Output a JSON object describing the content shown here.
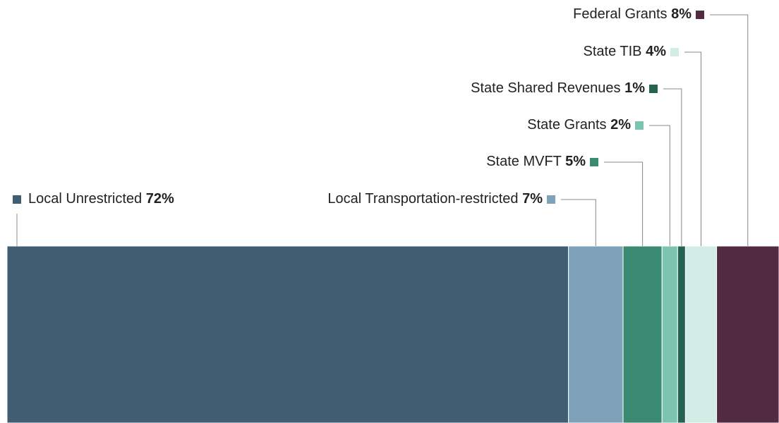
{
  "chart_data": {
    "type": "stacked-bar",
    "categories": [
      "Local Unrestricted",
      "Local Transportation-restricted",
      "State MVFT",
      "State Grants",
      "State Shared Revenues",
      "State TIB",
      "Federal Grants"
    ],
    "values": [
      72,
      7,
      5,
      2,
      1,
      4,
      8
    ],
    "value_labels": [
      "72%",
      "7%",
      "5%",
      "2%",
      "1%",
      "4%",
      "8%"
    ],
    "colors": [
      "#3f5e72",
      "#7fa2bb",
      "#3a8a72",
      "#7cc4b0",
      "#236350",
      "#d3ece5",
      "#522a42"
    ]
  }
}
